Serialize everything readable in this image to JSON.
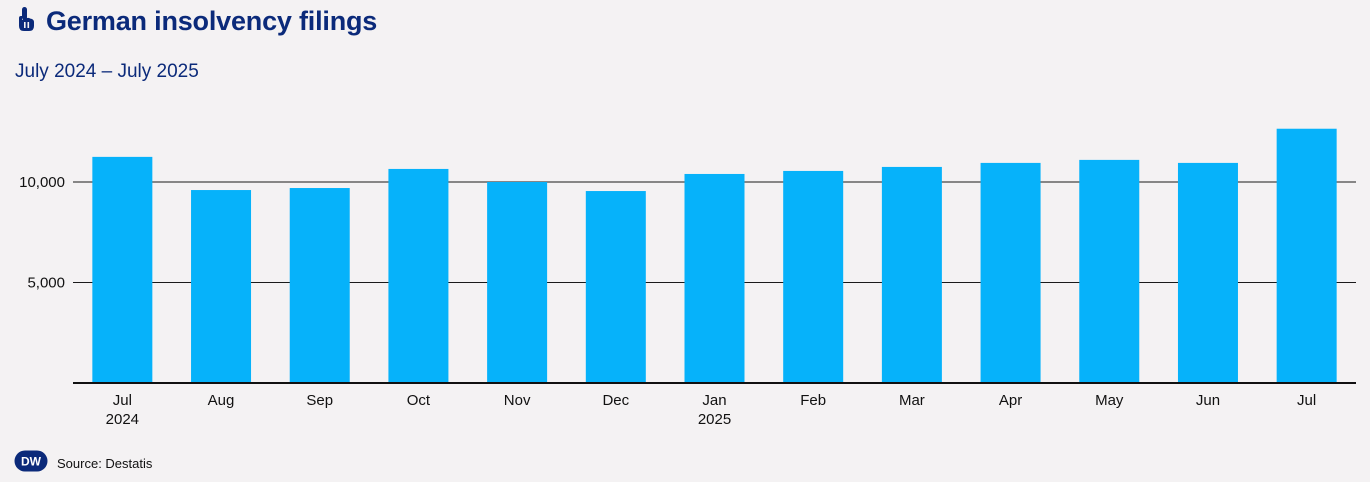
{
  "header": {
    "title": "German insolvency filings",
    "subtitle": "July 2024 – July 2025",
    "icon": "pointer-hand-icon"
  },
  "footer": {
    "logo_text": "DW",
    "source": "Source: Destatis"
  },
  "colors": {
    "bar": "#06b2fa",
    "title": "#0b2a7a",
    "axis": "#111111",
    "background": "#f4f2f3"
  },
  "chart_data": {
    "type": "bar",
    "categories": [
      "Jul",
      "Aug",
      "Sep",
      "Oct",
      "Nov",
      "Dec",
      "Jan",
      "Feb",
      "Mar",
      "Apr",
      "May",
      "Jun",
      "Jul"
    ],
    "category_sublabels": [
      "2024",
      "",
      "",
      "",
      "",
      "",
      "2025",
      "",
      "",
      "",
      "",
      "",
      ""
    ],
    "values": [
      11250,
      9600,
      9700,
      10650,
      10000,
      9550,
      10400,
      10550,
      10750,
      10950,
      11100,
      10950,
      12650
    ],
    "ylim": [
      0,
      13000
    ],
    "yticks": [
      5000,
      10000
    ],
    "ytick_labels": [
      "5,000",
      "10,000"
    ],
    "grid": true,
    "title": "German insolvency filings",
    "subtitle": "July 2024 – July 2025",
    "xlabel": "",
    "ylabel": ""
  }
}
